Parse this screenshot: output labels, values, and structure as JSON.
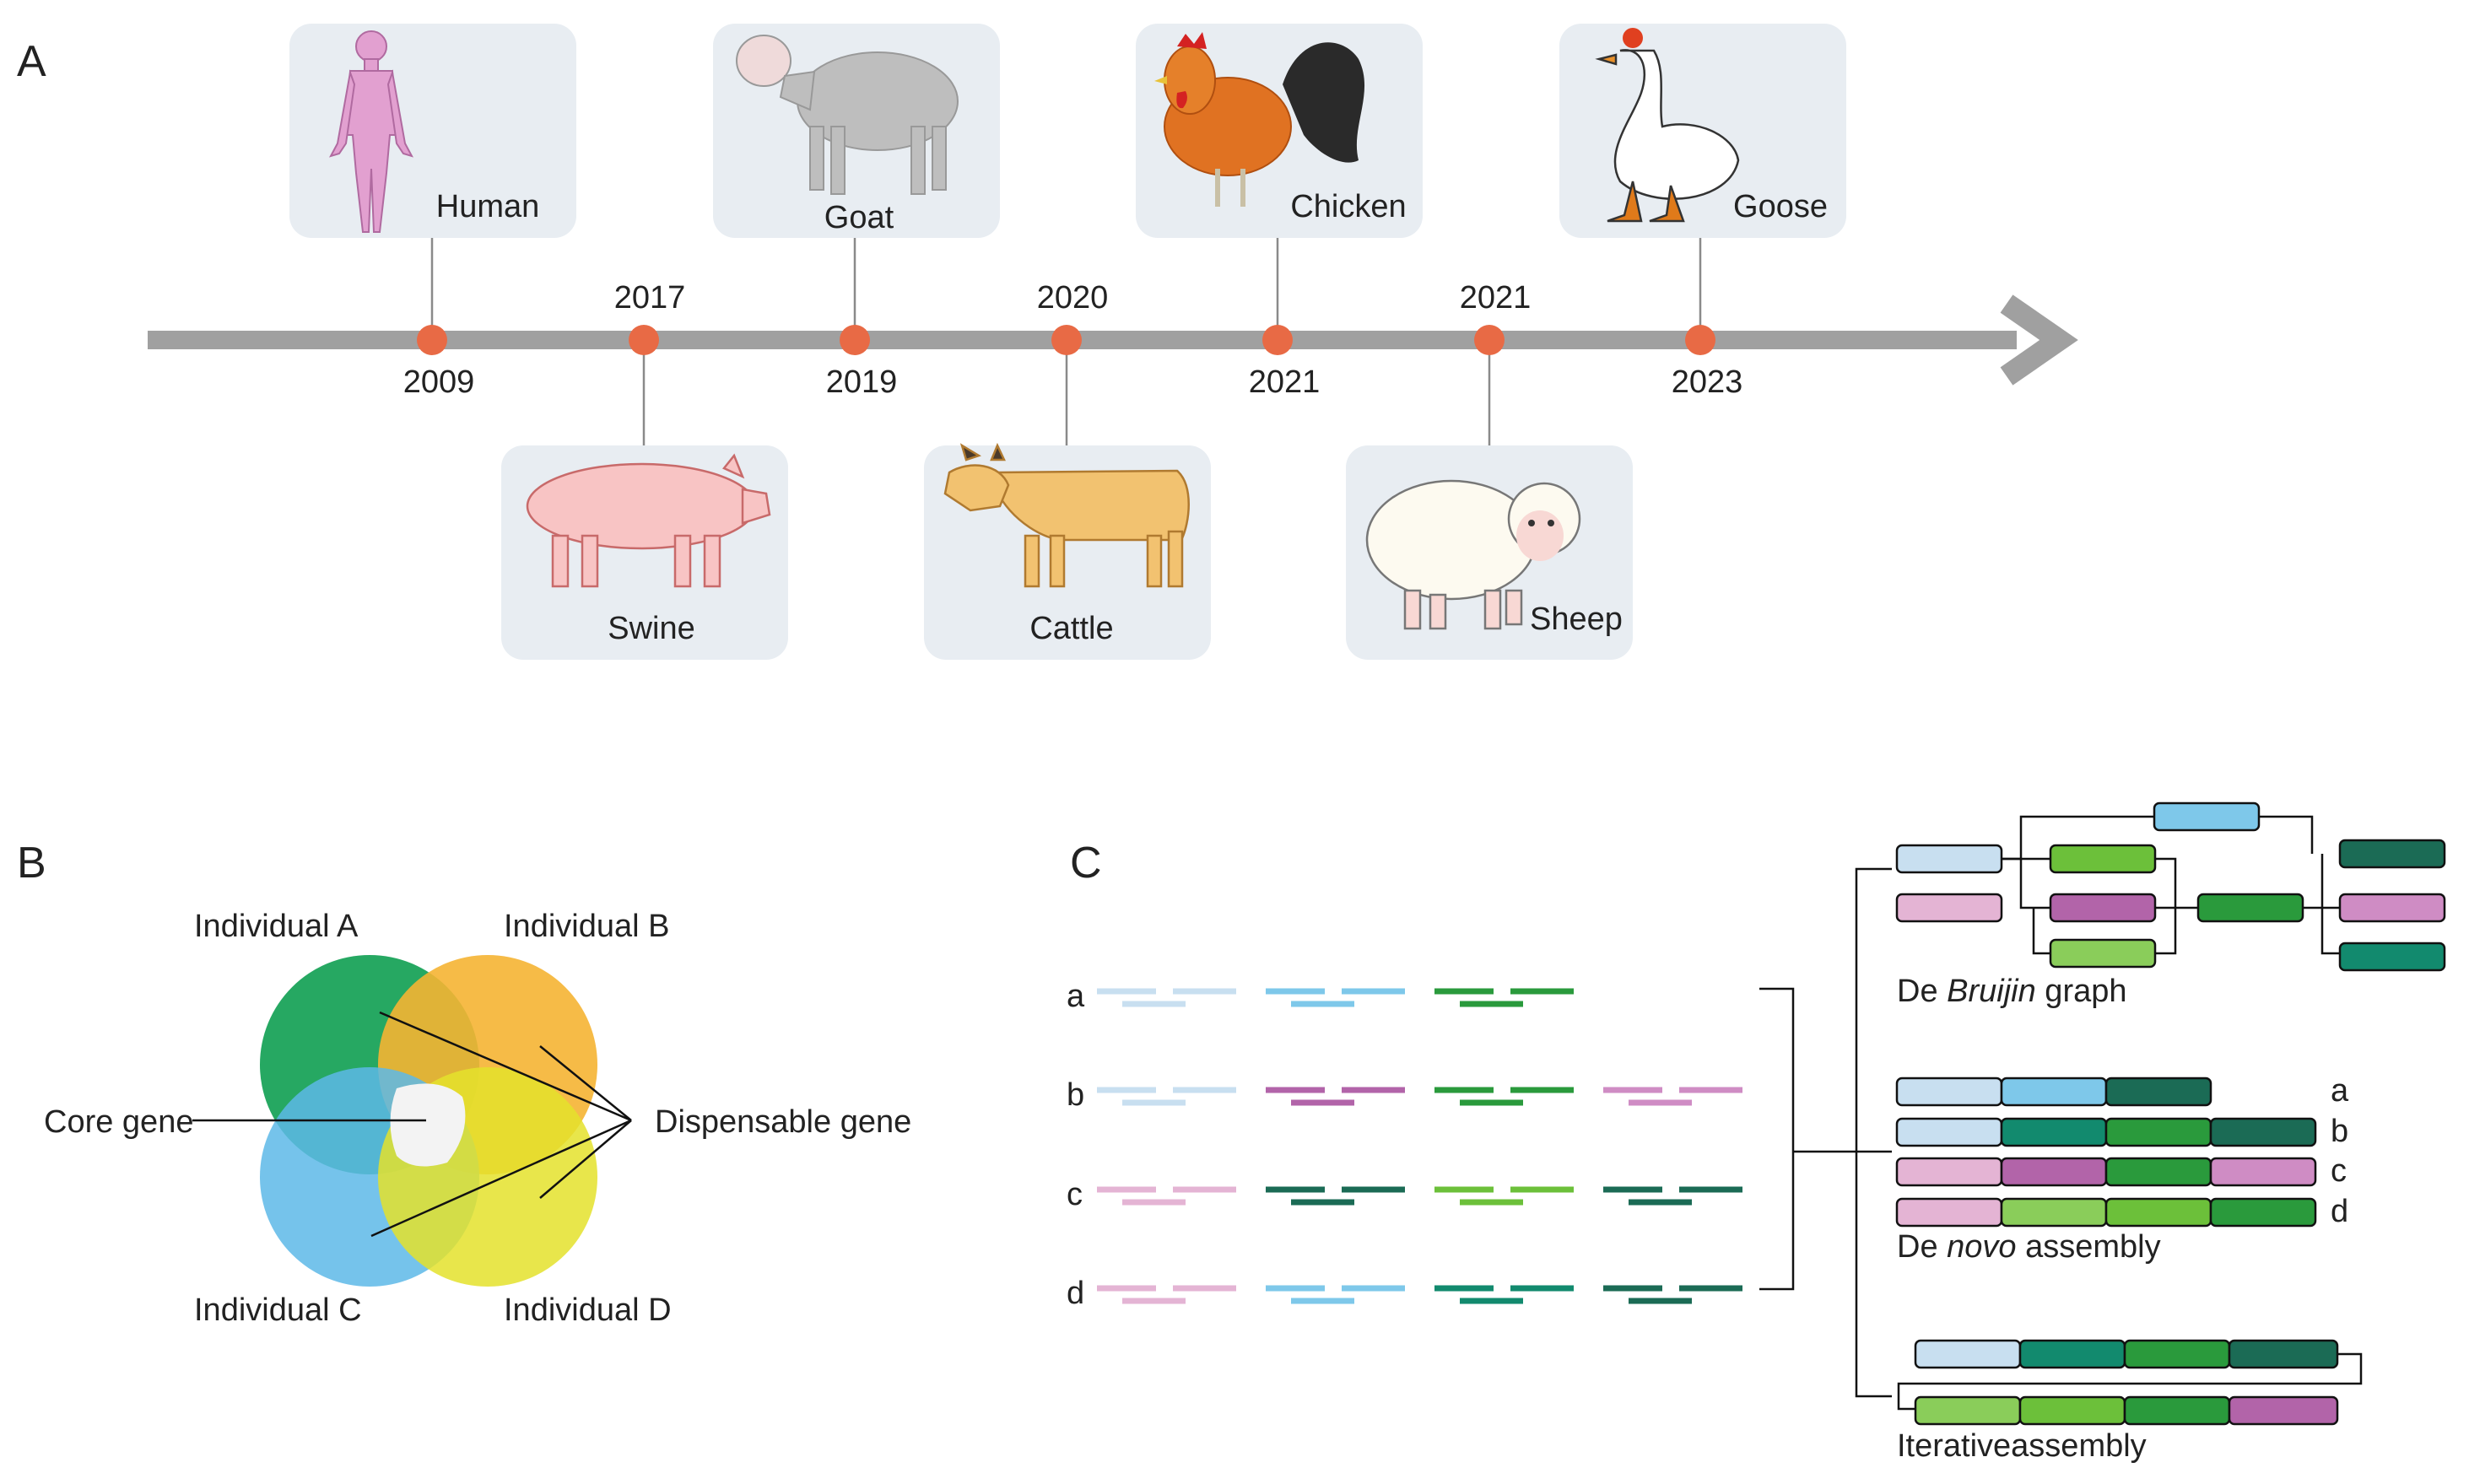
{
  "panels": {
    "a": "A",
    "b": "B",
    "c": "C"
  },
  "timeline": {
    "top_years": [
      "2017",
      "2020",
      "2021"
    ],
    "bottom_years": [
      "2009",
      "2019",
      "2021",
      "2023"
    ],
    "species_top": [
      "Human",
      "Goat",
      "Chicken",
      "Goose"
    ],
    "species_bottom": [
      "Swine",
      "Cattle",
      "Sheep"
    ]
  },
  "venn": {
    "individual_a": "Individual A",
    "individual_b": "Individual B",
    "individual_c": "Individual C",
    "individual_d": "Individual D",
    "core_gene": "Core gene",
    "dispensable_gene": "Dispensable gene"
  },
  "assembly": {
    "reads": [
      "a",
      "b",
      "c",
      "d"
    ],
    "debruijn_prefix": "De ",
    "debruijn_italic": "Bruijin",
    "debruijn_suffix": " graph",
    "denovo_prefix": "De ",
    "denovo_italic": "novo",
    "denovo_suffix": " assembly",
    "denovo_rows": [
      "a",
      "b",
      "c",
      "d"
    ],
    "iterative": "Iterativeassembly"
  },
  "colors": {
    "axis": "#a0a0a0",
    "dot": "#e86a45",
    "card": "#e8edf2",
    "venn_a": "#1aa35a",
    "venn_b": "#f5b433",
    "venn_c": "#5db8e8",
    "venn_d": "#e4e22c",
    "light_blue": "#c8dff0",
    "sky": "#7ec8ea",
    "dark_teal": "#1b6b55",
    "teal": "#128a6e",
    "green": "#2a9a3c",
    "lime": "#6cc03a",
    "light_green": "#8acd5a",
    "magenta": "#b264a9",
    "pink": "#e4b4d4",
    "orchid": "#cf8cc4"
  }
}
